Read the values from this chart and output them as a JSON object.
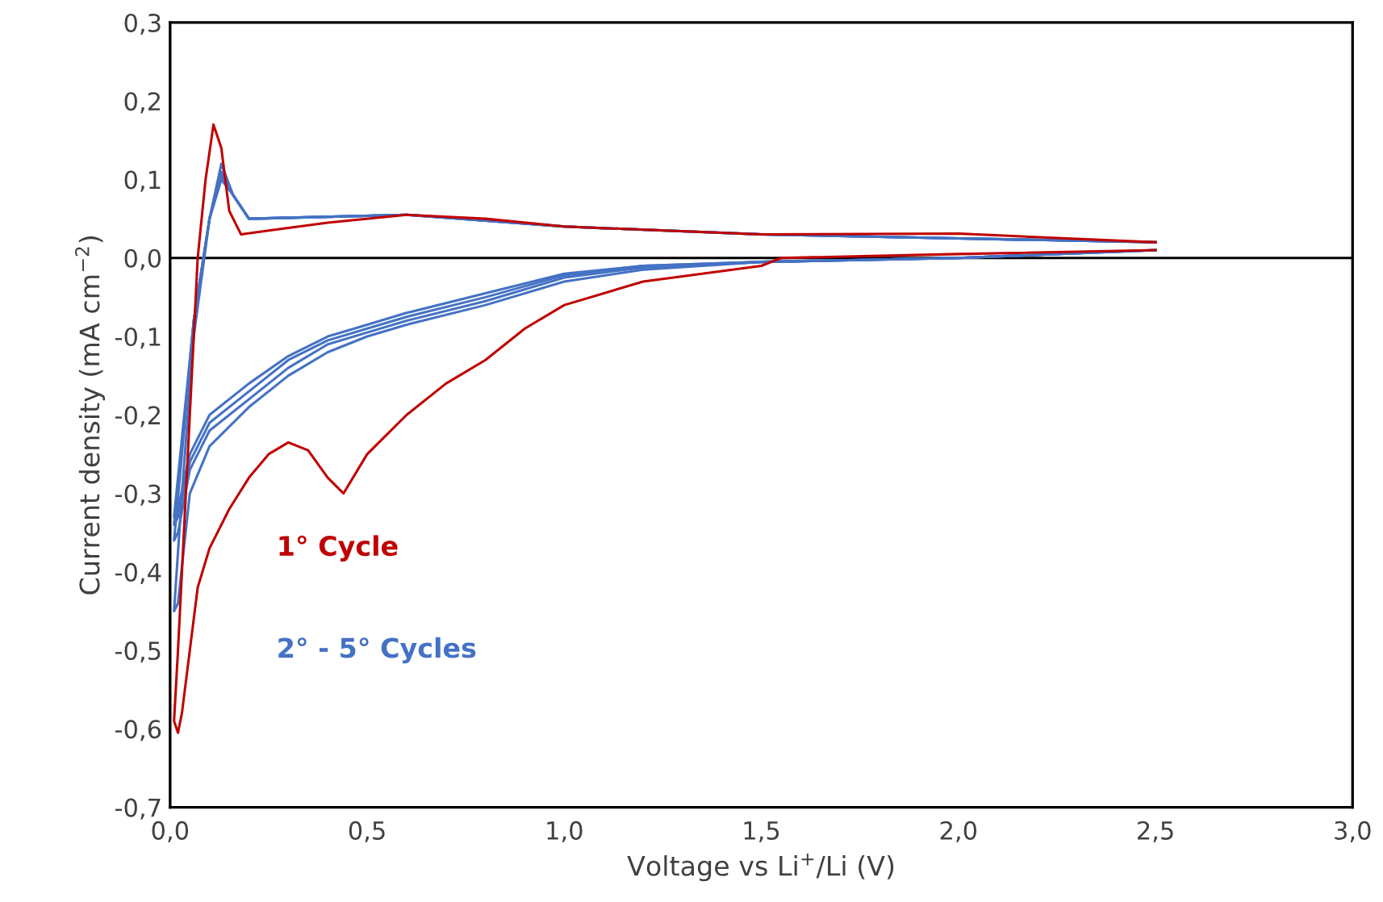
{
  "chart_data": {
    "type": "line",
    "xlabel": "Voltage vs Li$^{+}$/Li (V)",
    "ylabel": "Current density (mA cm$^{−2}$)",
    "xlim": [
      0,
      3
    ],
    "ylim": [
      -0.7,
      0.3
    ],
    "xticks": [
      {
        "value": 0,
        "label": "0,0"
      },
      {
        "value": 0.5,
        "label": "0,5"
      },
      {
        "value": 1,
        "label": "1,0"
      },
      {
        "value": 1.5,
        "label": "1,5"
      },
      {
        "value": 2,
        "label": "2,0"
      },
      {
        "value": 2.5,
        "label": "2,5"
      },
      {
        "value": 3,
        "label": "3,0"
      }
    ],
    "yticks": [
      {
        "value": -0.7,
        "label": "-0,7"
      },
      {
        "value": -0.6,
        "label": "-0,6"
      },
      {
        "value": -0.5,
        "label": "-0,5"
      },
      {
        "value": -0.4,
        "label": "-0,4"
      },
      {
        "value": -0.3,
        "label": "-0,3"
      },
      {
        "value": -0.2,
        "label": "-0,2"
      },
      {
        "value": -0.1,
        "label": "-0,1"
      },
      {
        "value": 0,
        "label": "0,0"
      },
      {
        "value": 0.1,
        "label": "0,1"
      },
      {
        "value": 0.2,
        "label": "0,2"
      },
      {
        "value": 0.3,
        "label": "0,3"
      }
    ],
    "grid": false,
    "legend": false,
    "marker": "none",
    "line_style": "solid",
    "ref_lines": [
      {
        "axis": "y",
        "value": 0,
        "color": "#000000"
      }
    ],
    "series": [
      {
        "name": "1° Cycle",
        "color": "#c00000",
        "x": [
          2.5,
          2.0,
          1.55,
          1.5,
          1.2,
          1.0,
          0.9,
          0.8,
          0.7,
          0.6,
          0.5,
          0.44,
          0.4,
          0.35,
          0.3,
          0.25,
          0.2,
          0.15,
          0.1,
          0.07,
          0.05,
          0.03,
          0.02,
          0.01,
          0.02,
          0.03,
          0.05,
          0.07,
          0.09,
          0.11,
          0.13,
          0.15,
          0.18,
          0.25,
          0.4,
          0.6,
          0.8,
          1.0,
          1.5,
          2.0,
          2.5
        ],
        "values": [
          0.01,
          0.005,
          0.0,
          -0.01,
          -0.03,
          -0.06,
          -0.09,
          -0.13,
          -0.16,
          -0.2,
          -0.25,
          -0.3,
          -0.28,
          -0.245,
          -0.235,
          -0.25,
          -0.28,
          -0.32,
          -0.37,
          -0.42,
          -0.5,
          -0.58,
          -0.605,
          -0.59,
          -0.5,
          -0.4,
          -0.2,
          0.0,
          0.1,
          0.17,
          0.14,
          0.06,
          0.03,
          0.035,
          0.045,
          0.055,
          0.05,
          0.04,
          0.03,
          0.031,
          0.02
        ]
      },
      {
        "name": "2° - 5° Cycles",
        "color": "#4472c4",
        "x": [
          2.5,
          2.0,
          1.5,
          1.2,
          1.0,
          0.8,
          0.6,
          0.5,
          0.4,
          0.3,
          0.2,
          0.1,
          0.05,
          0.02,
          0.01,
          0.03,
          0.06,
          0.1,
          0.13,
          0.16,
          0.2,
          0.6,
          1.0,
          1.5,
          2.0,
          2.5
        ],
        "values": [
          0.01,
          0.0,
          -0.005,
          -0.015,
          -0.03,
          -0.06,
          -0.085,
          -0.1,
          -0.12,
          -0.15,
          -0.19,
          -0.24,
          -0.3,
          -0.44,
          -0.45,
          -0.3,
          -0.1,
          0.05,
          0.12,
          0.08,
          0.05,
          0.055,
          0.04,
          0.03,
          0.025,
          0.02
        ]
      },
      {
        "color": "#4472c4",
        "x": [
          2.5,
          2.0,
          1.5,
          1.2,
          1.0,
          0.8,
          0.6,
          0.5,
          0.4,
          0.3,
          0.2,
          0.1,
          0.05,
          0.02,
          0.01,
          0.03,
          0.06,
          0.1,
          0.13,
          0.16,
          0.2,
          0.6,
          1.0,
          1.5,
          2.0,
          2.5
        ],
        "values": [
          0.01,
          0.0,
          -0.005,
          -0.012,
          -0.025,
          -0.055,
          -0.08,
          -0.095,
          -0.11,
          -0.14,
          -0.18,
          -0.22,
          -0.27,
          -0.35,
          -0.36,
          -0.25,
          -0.08,
          0.05,
          0.11,
          0.08,
          0.05,
          0.055,
          0.04,
          0.03,
          0.025,
          0.02
        ]
      },
      {
        "color": "#4472c4",
        "x": [
          2.5,
          2.0,
          1.5,
          1.2,
          1.0,
          0.8,
          0.6,
          0.5,
          0.4,
          0.3,
          0.2,
          0.1,
          0.05,
          0.02,
          0.01,
          0.03,
          0.06,
          0.1,
          0.13,
          0.16,
          0.2,
          0.6,
          1.0,
          1.5,
          2.0,
          2.5
        ],
        "values": [
          0.01,
          0.0,
          -0.005,
          -0.01,
          -0.022,
          -0.05,
          -0.075,
          -0.09,
          -0.105,
          -0.13,
          -0.17,
          -0.21,
          -0.26,
          -0.33,
          -0.34,
          -0.24,
          -0.08,
          0.05,
          0.105,
          0.08,
          0.05,
          0.055,
          0.04,
          0.03,
          0.025,
          0.02
        ]
      },
      {
        "color": "#4472c4",
        "x": [
          2.5,
          2.0,
          1.5,
          1.2,
          1.0,
          0.8,
          0.6,
          0.5,
          0.4,
          0.3,
          0.2,
          0.1,
          0.05,
          0.02,
          0.01,
          0.03,
          0.06,
          0.1,
          0.13,
          0.16,
          0.2,
          0.6,
          1.0,
          1.5,
          2.0,
          2.5
        ],
        "values": [
          0.01,
          0.0,
          -0.005,
          -0.01,
          -0.02,
          -0.045,
          -0.07,
          -0.085,
          -0.1,
          -0.125,
          -0.16,
          -0.2,
          -0.25,
          -0.32,
          -0.33,
          -0.23,
          -0.08,
          0.05,
          0.1,
          0.08,
          0.05,
          0.055,
          0.04,
          0.03,
          0.025,
          0.02
        ]
      }
    ]
  }
}
